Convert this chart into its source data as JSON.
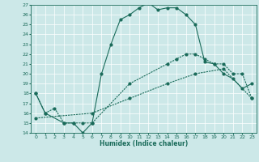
{
  "xlabel": "Humidex (Indice chaleur)",
  "xlim": [
    -0.5,
    23.5
  ],
  "ylim": [
    14,
    27
  ],
  "xticks": [
    0,
    1,
    2,
    3,
    4,
    5,
    6,
    7,
    8,
    9,
    10,
    11,
    12,
    13,
    14,
    15,
    16,
    17,
    18,
    19,
    20,
    21,
    22,
    23
  ],
  "yticks": [
    14,
    15,
    16,
    17,
    18,
    19,
    20,
    21,
    22,
    23,
    24,
    25,
    26,
    27
  ],
  "bg_color": "#cce8e8",
  "line_color": "#1a6b5a",
  "grid_color": "#ffffff",
  "line1_x": [
    0,
    1,
    3,
    4,
    5,
    6,
    7,
    8,
    9,
    10,
    11,
    12,
    13,
    14,
    15,
    16,
    17,
    18,
    19,
    20,
    21,
    22,
    23
  ],
  "line1_y": [
    18,
    16,
    15,
    15,
    14,
    15,
    20,
    23,
    25.5,
    26,
    26.7,
    27.2,
    26.5,
    26.7,
    26.7,
    26,
    25,
    21.2,
    21,
    20,
    19.5,
    18.5,
    19
  ],
  "line2_x": [
    0,
    1,
    2,
    3,
    4,
    5,
    6,
    10,
    14,
    15,
    16,
    17,
    18,
    19,
    20,
    21,
    22,
    23
  ],
  "line2_y": [
    18,
    16,
    16.5,
    15,
    15,
    15,
    15,
    19,
    21,
    21.5,
    22,
    22,
    21.5,
    21,
    21,
    20,
    20,
    17.5
  ],
  "line3_x": [
    0,
    6,
    10,
    14,
    17,
    20,
    23
  ],
  "line3_y": [
    15.5,
    16,
    17.5,
    19,
    20,
    20.5,
    17.5
  ]
}
